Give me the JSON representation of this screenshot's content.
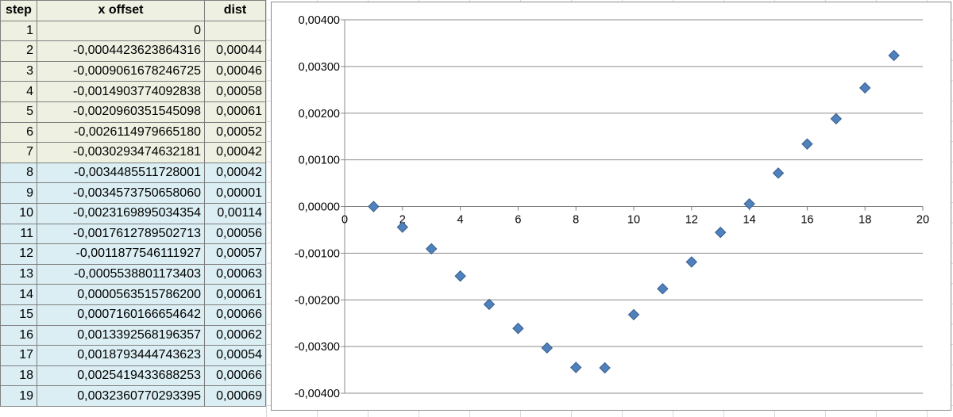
{
  "table": {
    "headers": [
      "step",
      "x offset",
      "dist"
    ],
    "rows": [
      [
        "1",
        "0",
        ""
      ],
      [
        "2",
        "-0,0004423623864316",
        "0,00044"
      ],
      [
        "3",
        "-0,0009061678246725",
        "0,00046"
      ],
      [
        "4",
        "-0,0014903774092838",
        "0,00058"
      ],
      [
        "5",
        "-0,0020960351545098",
        "0,00061"
      ],
      [
        "6",
        "-0,0026114979665180",
        "0,00052"
      ],
      [
        "7",
        "-0,0030293474632181",
        "0,00042"
      ],
      [
        "8",
        "-0,0034485511728001",
        "0,00042"
      ],
      [
        "9",
        "-0,0034573750658060",
        "0,00001"
      ],
      [
        "10",
        "-0,0023169895034354",
        "0,00114"
      ],
      [
        "11",
        "-0,0017612789502713",
        "0,00056"
      ],
      [
        "12",
        "-0,0011877546111927",
        "0,00057"
      ],
      [
        "13",
        "-0,0005538801173403",
        "0,00063"
      ],
      [
        "14",
        "0,0000563515786200",
        "0,00061"
      ],
      [
        "15",
        "0,0007160166654642",
        "0,00066"
      ],
      [
        "16",
        "0,0013392568196357",
        "0,00062"
      ],
      [
        "17",
        "0,0018793444743623",
        "0,00054"
      ],
      [
        "18",
        "0,0025419433688253",
        "0,00066"
      ],
      [
        "19",
        "0,0032360770293395",
        "0,00069"
      ]
    ],
    "header_fill": "#eef0e2",
    "rows_fill_a": "#eef0e2",
    "rows_fill_b": "#dbeef3"
  },
  "chart_data": {
    "type": "scatter",
    "x": [
      1,
      2,
      3,
      4,
      5,
      6,
      7,
      8,
      9,
      10,
      11,
      12,
      13,
      14,
      15,
      16,
      17,
      18,
      19
    ],
    "y": [
      0,
      -0.0004423623864316,
      -0.0009061678246725,
      -0.0014903774092838,
      -0.0020960351545098,
      -0.002611497966518,
      -0.0030293474632181,
      -0.0034485511728001,
      -0.003457375065806,
      -0.0023169895034354,
      -0.0017612789502713,
      -0.0011877546111927,
      -0.0005538801173403,
      5.635157862e-05,
      0.0007160166654642,
      0.0013392568196357,
      0.0018793444743623,
      0.0025419433688253,
      0.0032360770293395
    ],
    "xlim": [
      0,
      20
    ],
    "ylim": [
      -0.004,
      0.004
    ],
    "x_ticks": [
      "0",
      "2",
      "4",
      "6",
      "8",
      "10",
      "12",
      "14",
      "16",
      "18",
      "20"
    ],
    "y_ticks": [
      "0,00400",
      "0,00300",
      "0,00200",
      "0,00100",
      "0,00000",
      "-0,00100",
      "-0,00200",
      "-0,00300",
      "-0,00400"
    ],
    "grid": "horizontal",
    "marker": "diamond",
    "marker_color": "#4f81bd",
    "marker_edge": "#385d8a",
    "title": "",
    "xlabel": "",
    "ylabel": ""
  }
}
